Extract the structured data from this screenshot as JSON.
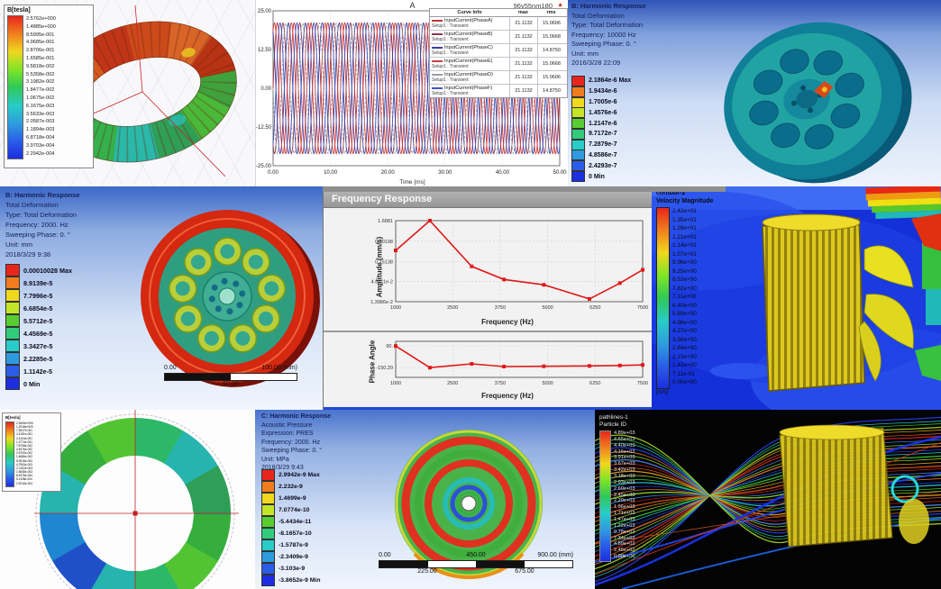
{
  "p1": {
    "legend_title": "B[tesla]",
    "values": [
      "2.5762e+000",
      "1.4885e+000",
      "8.5995e-001",
      "4.9685e-001",
      "2.8706e-001",
      "1.6585e-001",
      "9.5818e-002",
      "5.5358e-002",
      "3.1982e-002",
      "1.8477e-002",
      "1.0675e-002",
      "6.1675e-003",
      "3.5633e-003",
      "2.0587e-003",
      "1.1894e-003",
      "6.8718e-004",
      "3.9703e-004",
      "2.2942e-004"
    ]
  },
  "p3": {
    "header": [
      "B: Harmonic Response",
      "Total Deformation",
      "Type: Total Deformation",
      "Frequency: 10000 Hz",
      "Sweeping Phase: 0. °",
      "Unit: mm",
      "2016/3/28 22:09"
    ],
    "legend": [
      "2.1864e-6 Max",
      "1.9434e-6",
      "1.7005e-6",
      "1.4576e-6",
      "1.2147e-6",
      "9.7172e-7",
      "7.2879e-7",
      "4.8586e-7",
      "2.4293e-7",
      "0 Min"
    ]
  },
  "p4": {
    "header": [
      "B: Harmonic Response",
      "Total Deformation",
      "Type: Total Deformation",
      "Frequency: 2000. Hz",
      "Sweeping Phase: 0. °",
      "Unit: mm",
      "2018/3/29 9:38"
    ],
    "legend": [
      "0.00010028 Max",
      "8.9139e-5",
      "7.7996e-5",
      "6.6854e-5",
      "5.5712e-5",
      "4.4569e-5",
      "3.3427e-5",
      "2.2285e-5",
      "1.1142e-5",
      "0 Min"
    ],
    "scale": {
      "left": "0.00",
      "right": "100.00 (mm)",
      "mid": "50.00"
    }
  },
  "p6": {
    "title1": "contour-2",
    "title2": "Velocity Magnitude",
    "unit": "[m/s]",
    "values": [
      "1.42e+01",
      "1.35e+01",
      "1.28e+01",
      "1.21e+01",
      "1.14e+01",
      "1.07e+01",
      "9.96e+00",
      "9.25e+00",
      "8.53e+00",
      "7.82e+00",
      "7.11e+00",
      "6.40e+00",
      "5.69e+00",
      "4.98e+00",
      "4.27e+00",
      "3.56e+00",
      "2.84e+00",
      "2.13e+00",
      "1.42e+00",
      "7.11e-01",
      "0.00e+00"
    ]
  },
  "p7": {
    "legend_title": "B[tesla]",
    "values": [
      "2.2606e+000",
      "1.2918e+000",
      "7.3817e-001",
      "4.2181e-001",
      "2.4104e-001",
      "1.3774e-001",
      "7.8708e-002",
      "4.4976e-002",
      "2.5700e-002",
      "1.4686e-002",
      "8.3918e-003",
      "4.7953e-003",
      "2.7402e-003",
      "1.5658e-003",
      "8.9475e-004",
      "5.1128e-004",
      "2.9216e-004"
    ]
  },
  "p8": {
    "header": [
      "C: Harmonic Response",
      "Acoustic Pressure",
      "Expression: PRES",
      "Frequency: 2000. Hz",
      "Sweeping Phase: 0. °",
      "Unit: MPa",
      "2018/3/29 9:43"
    ],
    "legend": [
      "2.9942e-9 Max",
      "2.232e-9",
      "1.4699e-9",
      "7.0774e-10",
      "-5.4434e-11",
      "-8.1657e-10",
      "-1.5787e-9",
      "-2.3409e-9",
      "-3.103e-9",
      "-3.8652e-9 Min"
    ],
    "scale": {
      "t0": "0.00",
      "t1": "450.00",
      "t2": "900.00 (mm)",
      "b0": "225.00",
      "b1": "675.00"
    }
  },
  "p9": {
    "title1": "pathlines-1",
    "title2": "Particle ID",
    "values": [
      "4.89e+03",
      "4.65e+03",
      "4.40e+03",
      "4.16e+03",
      "3.91e+03",
      "3.67e+03",
      "3.42e+03",
      "3.18e+03",
      "2.93e+03",
      "2.69e+03",
      "2.45e+03",
      "2.20e+03",
      "1.96e+03",
      "1.71e+03",
      "1.47e+03",
      "1.22e+03",
      "9.78e+02",
      "7.34e+02",
      "4.89e+02",
      "2.45e+02",
      "0.00e+00"
    ]
  },
  "chart_data": [
    {
      "type": "line",
      "title": "A",
      "corner_label": "96v55nm180",
      "corner_icon": "▲",
      "xlabel": "Time [ms]",
      "xlim": [
        0,
        50
      ],
      "ylim": [
        -25,
        25
      ],
      "x_ticks": [
        0,
        10,
        20,
        30,
        40,
        50
      ],
      "x_tick_labels": [
        "0.00",
        "10.00",
        "20.00",
        "30.00",
        "40.00",
        "50.00"
      ],
      "y_ticks": [
        25,
        12.5,
        0,
        -12.5,
        -25
      ],
      "y_tick_labels": [
        "25.00",
        "12.50",
        "0.00",
        "-12.50",
        "-25.00"
      ],
      "amplitude": 21.1132,
      "cycles": 17,
      "table_headers": [
        "Curve Info",
        "max",
        "rms"
      ],
      "series": [
        {
          "name": "InputCurrent(PhaseA)",
          "setup": "Setup1 : Transient",
          "max": "21.1132",
          "rms": "15.0606",
          "color": "#c03434",
          "phase_deg": 0
        },
        {
          "name": "InputCurrent(PhaseB)",
          "setup": "Setup1 : Transient",
          "max": "21.1132",
          "rms": "15.0668",
          "color": "#8a3a50",
          "phase_deg": 240
        },
        {
          "name": "InputCurrent(PhaseC)",
          "setup": "Setup1 : Transient",
          "max": "21.1132",
          "rms": "14.8750",
          "color": "#3a3f9e",
          "phase_deg": 120
        },
        {
          "name": "InputCurrent(PhaseE)",
          "setup": "Setup1 : Transient",
          "max": "21.1132",
          "rms": "15.0668",
          "color": "#d04040",
          "phase_deg": 60
        },
        {
          "name": "InputCurrent(PhaseD)",
          "setup": "Setup1 : Transient",
          "max": "21.1132",
          "rms": "15.0606",
          "color": "#9a9aa6",
          "dash": true,
          "phase_deg": 180
        },
        {
          "name": "InputCurrent(PhaseF)",
          "setup": "Setup1 : Transient",
          "max": "21.1132",
          "rms": "14.8750",
          "color": "#4456c4",
          "phase_deg": 300
        }
      ]
    },
    {
      "type": "line",
      "window_title": "Frequency Response",
      "amplitude": {
        "ylabel": "Amplitude (mm/s)",
        "xlabel": "Frequency (Hz)",
        "yscale": "log",
        "y_ticks": [
          1.6881,
          0.50198,
          0.15138,
          0.046011,
          0.013986
        ],
        "y_tick_labels": [
          "1.6881",
          "0.50198",
          "0.15138",
          "4.6011e-2",
          "1.3986e-2"
        ],
        "x_ticks": [
          1000,
          2500,
          3750,
          5000,
          6250,
          7500
        ],
        "x_tick_labels": [
          "1000",
          "2500",
          "3750",
          "5000",
          "6250",
          "7500"
        ],
        "x": [
          1000,
          1900,
          3000,
          3850,
          4900,
          6100,
          6900,
          7500
        ],
        "y": [
          0.29,
          1.6881,
          0.113,
          0.052,
          0.038,
          0.0165,
          0.042,
          0.092
        ],
        "color": "#e01818"
      },
      "phase": {
        "ylabel": "Phase Angle",
        "xlabel": "Frequency (Hz)",
        "y_ticks": [
          90,
          -150.29
        ],
        "y_tick_labels": [
          "90.",
          "-150.29"
        ],
        "x_ticks": [
          1000,
          2500,
          3750,
          5000,
          6250,
          7500
        ],
        "x_tick_labels": [
          "1000",
          "2500",
          "3750",
          "5000",
          "6250",
          "7500"
        ],
        "x": [
          1000,
          1900,
          3000,
          3850,
          4900,
          6100,
          6900,
          7500
        ],
        "y": [
          88,
          -152,
          -110,
          -140,
          -137,
          -133,
          -128,
          -122
        ],
        "color": "#e01818"
      }
    }
  ]
}
